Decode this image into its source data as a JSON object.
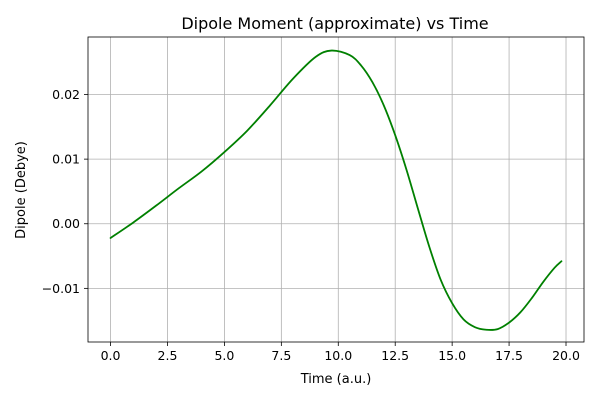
{
  "chart_data": {
    "type": "line",
    "title": "Dipole Moment (approximate) vs Time",
    "xlabel": "Time (a.u.)",
    "ylabel": "Dipole (Debye)",
    "xlim": [
      -0.99,
      20.79
    ],
    "ylim": [
      -0.0183,
      0.0289
    ],
    "xticks": [
      0.0,
      2.5,
      5.0,
      7.5,
      10.0,
      12.5,
      15.0,
      17.5,
      20.0
    ],
    "xtick_labels": [
      "0.0",
      "2.5",
      "5.0",
      "7.5",
      "10.0",
      "12.5",
      "15.0",
      "17.5",
      "20.0"
    ],
    "yticks": [
      -0.01,
      0.0,
      0.01,
      0.02
    ],
    "ytick_labels": [
      "−0.01",
      "0.00",
      "0.01",
      "0.02"
    ],
    "grid": true,
    "series": [
      {
        "color": "#008000",
        "x": [
          0.0,
          1.0,
          2.0,
          3.0,
          4.0,
          5.0,
          6.0,
          7.0,
          8.0,
          9.0,
          9.7,
          10.5,
          11.0,
          11.5,
          12.0,
          12.5,
          13.0,
          13.5,
          14.0,
          14.5,
          15.0,
          15.5,
          16.0,
          16.5,
          17.0,
          17.5,
          18.0,
          18.5,
          19.0,
          19.5,
          19.8
        ],
        "y": [
          -0.0022,
          0.0002,
          0.0028,
          0.0055,
          0.0081,
          0.0111,
          0.0144,
          0.0183,
          0.0224,
          0.0258,
          0.0268,
          0.0261,
          0.0245,
          0.0219,
          0.0183,
          0.0137,
          0.0083,
          0.0023,
          -0.0036,
          -0.0087,
          -0.0123,
          -0.0148,
          -0.016,
          -0.0164,
          -0.0163,
          -0.0153,
          -0.0137,
          -0.0115,
          -0.009,
          -0.0068,
          -0.0058
        ]
      }
    ]
  }
}
